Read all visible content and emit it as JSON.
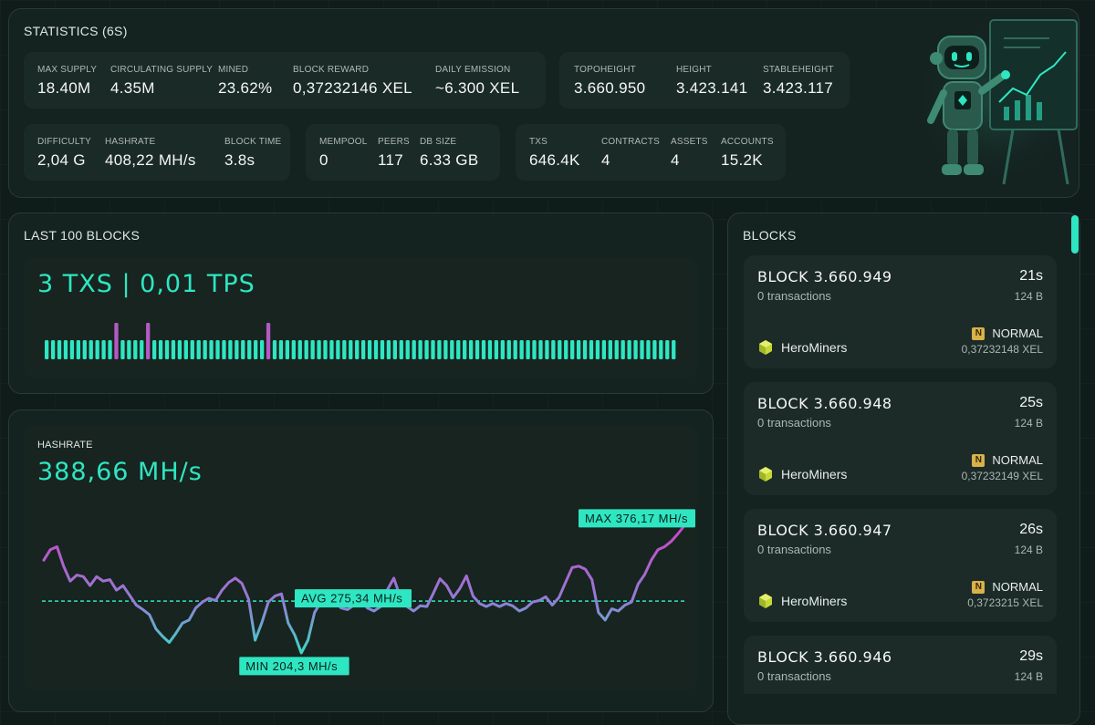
{
  "statistics": {
    "title": "STATISTICS (6s)",
    "groups": [
      [
        {
          "label": "MAX SUPPLY",
          "value": "18.40M"
        },
        {
          "label": "CIRCULATING SUPPLY",
          "value": "4.35M"
        },
        {
          "label": "MINED",
          "value": "23.62%"
        },
        {
          "label": "BLOCK REWARD",
          "value": "0,37232146 XEL"
        },
        {
          "label": "DAILY EMISSION",
          "value": "~6.300 XEL"
        }
      ],
      [
        {
          "label": "TOPOHEIGHT",
          "value": "3.660.950"
        },
        {
          "label": "HEIGHT",
          "value": "3.423.141"
        },
        {
          "label": "STABLEHEIGHT",
          "value": "3.423.117"
        }
      ],
      [
        {
          "label": "DIFFICULTY",
          "value": "2,04 G"
        },
        {
          "label": "HASHRATE",
          "value": "408,22 MH/s"
        },
        {
          "label": "BLOCK TIME",
          "value": "3.8s"
        }
      ],
      [
        {
          "label": "MEMPOOL",
          "value": "0"
        },
        {
          "label": "PEERS",
          "value": "117"
        },
        {
          "label": "DB SIZE",
          "value": "6.33 GB"
        }
      ],
      [
        {
          "label": "TXS",
          "value": "646.4K"
        },
        {
          "label": "CONTRACTS",
          "value": "4"
        },
        {
          "label": "ASSETS",
          "value": "4"
        },
        {
          "label": "ACCOUNTS",
          "value": "15.2K"
        }
      ]
    ]
  },
  "last_blocks": {
    "title": "LAST 100 BLOCKS",
    "summary": "3 TXS | 0,01 TPS",
    "bar_count": 100,
    "tx_block_indices": [
      11,
      16,
      35
    ],
    "colors": {
      "normal": "#2ee6c2",
      "with_tx": "#b35ac4"
    }
  },
  "hashrate": {
    "title": "HASHRATE",
    "current": "388,66 MH/s",
    "max_label": "MAX 376,17 MH/s",
    "avg_label": "AVG 275,34 MH/s",
    "min_label": "MIN 204,3 MH/s",
    "chart_data": {
      "type": "line",
      "values": [
        330,
        344,
        348,
        322,
        302,
        310,
        308,
        296,
        308,
        302,
        304,
        290,
        296,
        283,
        270,
        264,
        257,
        238,
        228,
        220,
        232,
        246,
        250,
        266,
        274,
        279,
        276,
        290,
        300,
        306,
        299,
        278,
        223,
        246,
        274,
        282,
        285,
        246,
        230,
        206,
        223,
        260,
        275,
        282,
        277,
        266,
        264,
        270,
        278,
        266,
        262,
        268,
        290,
        306,
        280,
        268,
        262,
        269,
        268,
        286,
        305,
        296,
        280,
        292,
        309,
        282,
        272,
        268,
        272,
        268,
        272,
        269,
        262,
        266,
        274,
        276,
        281,
        270,
        280,
        300,
        320,
        322,
        318,
        304,
        260,
        250,
        265,
        262,
        270,
        274,
        298,
        311,
        330,
        344,
        348,
        355,
        365,
        376
      ],
      "avg": 275.34,
      "min": 204.3,
      "max": 376.17,
      "ylim": [
        195,
        390
      ],
      "gradient": {
        "low": "#2ee6c2",
        "high": "#d63ec4"
      },
      "avg_color": "#2ee6c2"
    }
  },
  "blocks": {
    "title": "BLOCKS",
    "items": [
      {
        "title": "BLOCK 3.660.949",
        "txs": "0 transactions",
        "age": "21s",
        "size": "124 B",
        "badge": "N",
        "type": "NORMAL",
        "miner": "HeroMiners",
        "reward": "0,37232148 XEL"
      },
      {
        "title": "BLOCK 3.660.948",
        "txs": "0 transactions",
        "age": "25s",
        "size": "124 B",
        "badge": "N",
        "type": "NORMAL",
        "miner": "HeroMiners",
        "reward": "0,37232149 XEL"
      },
      {
        "title": "BLOCK 3.660.947",
        "txs": "0 transactions",
        "age": "26s",
        "size": "124 B",
        "badge": "N",
        "type": "NORMAL",
        "miner": "HeroMiners",
        "reward": "0,3723215 XEL"
      },
      {
        "title": "BLOCK 3.660.946",
        "txs": "0 transactions",
        "age": "29s",
        "size": "124 B"
      }
    ]
  }
}
